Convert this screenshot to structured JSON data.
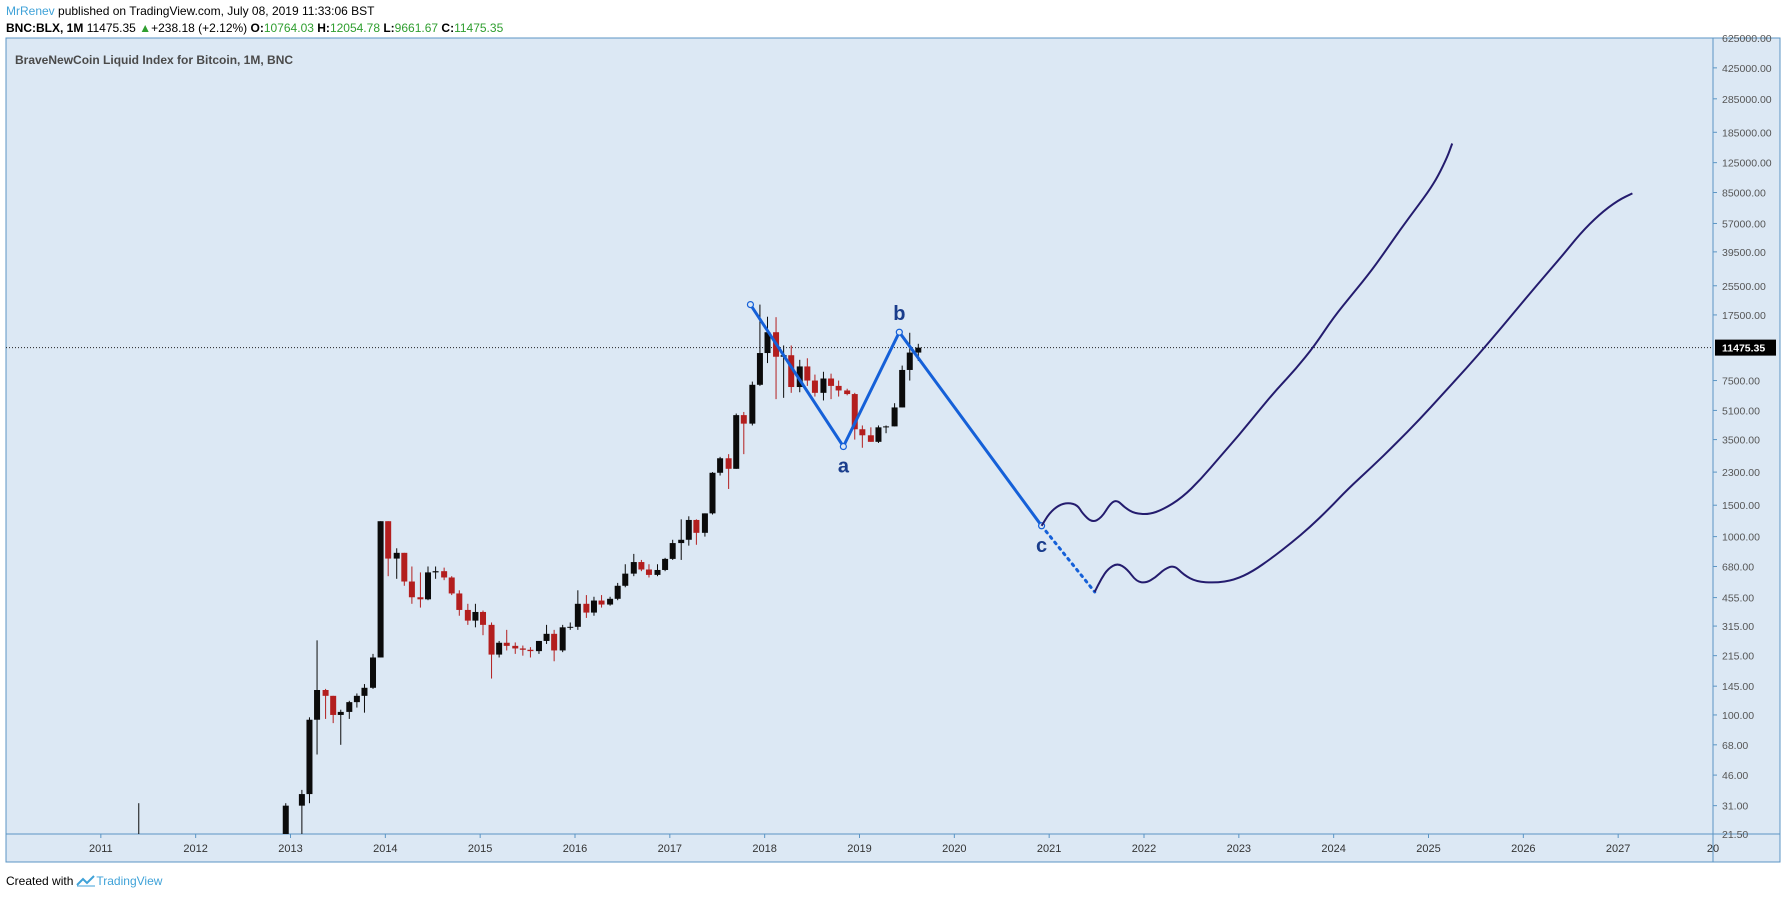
{
  "header": {
    "author": "MrRenev",
    "published_text": "published on TradingView.com, July 08, 2019 11:33:06 BST",
    "symbol": "BNC:BLX, 1M",
    "last": "11475.35",
    "up_arrow": "▲",
    "change": "+238.18 (+2.12%)",
    "o_label": "O:",
    "o_value": "10764.03",
    "h_label": "H:",
    "h_value": "12054.78",
    "l_label": "L:",
    "l_value": "9661.67",
    "c_label": "C:",
    "c_value": "11475.35"
  },
  "footer": {
    "created_with": "Created with",
    "brand": "TradingView"
  },
  "colors": {
    "background": "#dce8f4",
    "frame": "#5b95c4",
    "up_candle": "#0b0b0b",
    "down_candle": "#b31e1e",
    "pattern_line": "#1560d8",
    "projection": "#241c6e",
    "wave_label": "#1a3d8c",
    "price_label_bg": "#000000"
  },
  "chart_data": {
    "type": "candlestick",
    "title": "BraveNewCoin Liquid Index for Bitcoin, 1M, BNC",
    "y_scale": "log",
    "ylim": [
      21.5,
      625000
    ],
    "xlim": [
      2010.0,
      2028.0
    ],
    "y_ticks": [
      "625000.00",
      "425000.00",
      "285000.00",
      "185000.00",
      "125000.00",
      "85000.00",
      "57000.00",
      "39500.00",
      "25500.00",
      "17500.00",
      "11475.35",
      "7500.00",
      "5100.00",
      "3500.00",
      "2300.00",
      "1500.00",
      "1000.00",
      "680.00",
      "455.00",
      "315.00",
      "215.00",
      "145.00",
      "100.00",
      "68.00",
      "46.00",
      "31.00",
      "21.50"
    ],
    "x_ticks": [
      "2011",
      "2012",
      "2013",
      "2014",
      "2015",
      "2016",
      "2017",
      "2018",
      "2019",
      "2020",
      "2021",
      "2022",
      "2023",
      "2024",
      "2025",
      "2026",
      "2027",
      "20"
    ],
    "last_price_label": "11475.35",
    "candles_ohlc": [
      [
        2011.4,
        21,
        32,
        21,
        21
      ],
      [
        2012.95,
        21,
        32,
        21,
        31
      ],
      [
        2013.12,
        31,
        38,
        21,
        36
      ],
      [
        2013.2,
        36,
        97,
        32,
        94
      ],
      [
        2013.28,
        94,
        262,
        60,
        138
      ],
      [
        2013.37,
        138,
        140,
        95,
        128
      ],
      [
        2013.45,
        128,
        128,
        90,
        100
      ],
      [
        2013.53,
        100,
        107,
        68,
        104
      ],
      [
        2013.62,
        104,
        120,
        95,
        118
      ],
      [
        2013.7,
        118,
        132,
        110,
        128
      ],
      [
        2013.78,
        128,
        149,
        103,
        142
      ],
      [
        2013.87,
        142,
        220,
        140,
        210
      ],
      [
        2013.95,
        210,
        1220,
        210,
        1220
      ],
      [
        2014.03,
        1220,
        1220,
        600,
        753
      ],
      [
        2014.12,
        753,
        860,
        580,
        811
      ],
      [
        2014.2,
        811,
        811,
        530,
        560
      ],
      [
        2014.28,
        560,
        680,
        420,
        457
      ],
      [
        2014.37,
        457,
        630,
        400,
        445
      ],
      [
        2014.45,
        445,
        680,
        440,
        630
      ],
      [
        2014.53,
        630,
        680,
        580,
        640
      ],
      [
        2014.62,
        640,
        670,
        570,
        590
      ],
      [
        2014.7,
        590,
        600,
        470,
        480
      ],
      [
        2014.78,
        480,
        500,
        360,
        388
      ],
      [
        2014.87,
        388,
        420,
        320,
        338
      ],
      [
        2014.95,
        338,
        420,
        310,
        378
      ],
      [
        2015.03,
        378,
        385,
        280,
        320
      ],
      [
        2015.12,
        320,
        330,
        160,
        218
      ],
      [
        2015.2,
        218,
        260,
        210,
        254
      ],
      [
        2015.28,
        254,
        300,
        230,
        244
      ],
      [
        2015.37,
        244,
        255,
        220,
        236
      ],
      [
        2015.45,
        236,
        245,
        215,
        232
      ],
      [
        2015.53,
        232,
        240,
        210,
        228
      ],
      [
        2015.62,
        228,
        260,
        220,
        260
      ],
      [
        2015.7,
        260,
        320,
        250,
        285
      ],
      [
        2015.78,
        285,
        300,
        200,
        230
      ],
      [
        2015.87,
        230,
        320,
        225,
        310
      ],
      [
        2015.95,
        310,
        330,
        300,
        312
      ],
      [
        2016.03,
        312,
        500,
        300,
        420
      ],
      [
        2016.12,
        420,
        470,
        350,
        375
      ],
      [
        2016.2,
        375,
        460,
        360,
        438
      ],
      [
        2016.28,
        438,
        470,
        400,
        416
      ],
      [
        2016.37,
        416,
        460,
        410,
        448
      ],
      [
        2016.45,
        448,
        550,
        440,
        530
      ],
      [
        2016.53,
        530,
        700,
        520,
        620
      ],
      [
        2016.62,
        620,
        800,
        600,
        720
      ],
      [
        2016.7,
        720,
        740,
        640,
        654
      ],
      [
        2016.78,
        654,
        700,
        590,
        610
      ],
      [
        2016.87,
        610,
        700,
        600,
        650
      ],
      [
        2016.95,
        650,
        760,
        640,
        750
      ],
      [
        2017.03,
        750,
        960,
        740,
        920
      ],
      [
        2017.12,
        920,
        1250,
        740,
        960
      ],
      [
        2017.2,
        960,
        1300,
        890,
        1240
      ],
      [
        2017.28,
        1240,
        1250,
        900,
        1050
      ],
      [
        2017.37,
        1050,
        1350,
        1000,
        1350
      ],
      [
        2017.45,
        1350,
        2300,
        1330,
        2280
      ],
      [
        2017.53,
        2280,
        2800,
        2200,
        2750
      ],
      [
        2017.62,
        2750,
        2900,
        1850,
        2400
      ],
      [
        2017.7,
        2400,
        4900,
        2400,
        4800
      ],
      [
        2017.78,
        4800,
        5000,
        2900,
        4300
      ],
      [
        2017.87,
        4300,
        7400,
        4200,
        7100
      ],
      [
        2017.95,
        7100,
        20000,
        7000,
        10700
      ],
      [
        2018.03,
        10700,
        17100,
        9400,
        14000
      ],
      [
        2018.12,
        14000,
        17000,
        5900,
        10200
      ],
      [
        2018.2,
        10200,
        11800,
        6000,
        10400
      ],
      [
        2018.28,
        10400,
        11800,
        6400,
        6900
      ],
      [
        2018.37,
        6900,
        9800,
        6450,
        9000
      ],
      [
        2018.45,
        9000,
        10000,
        7000,
        7500
      ],
      [
        2018.53,
        7500,
        8100,
        6100,
        6400
      ],
      [
        2018.62,
        6400,
        8400,
        5800,
        7700
      ],
      [
        2018.7,
        7700,
        8200,
        5900,
        7000
      ],
      [
        2018.78,
        7000,
        7500,
        6100,
        6600
      ],
      [
        2018.87,
        6600,
        6750,
        6200,
        6300
      ],
      [
        2018.95,
        6300,
        6400,
        3500,
        4000
      ],
      [
        2019.03,
        4000,
        4200,
        3150,
        3700
      ],
      [
        2019.12,
        3700,
        4100,
        3400,
        3400
      ],
      [
        2019.2,
        3400,
        4200,
        3350,
        4100
      ],
      [
        2019.28,
        4100,
        4200,
        3800,
        4150
      ],
      [
        2019.37,
        4150,
        5600,
        4150,
        5300
      ],
      [
        2019.45,
        5300,
        9100,
        5300,
        8600
      ],
      [
        2019.53,
        8600,
        13900,
        7500,
        10764
      ],
      [
        2019.62,
        10764,
        12055,
        9662,
        11475
      ]
    ],
    "pattern_line": [
      [
        2017.85,
        20000
      ],
      [
        2018.83,
        3200
      ],
      [
        2019.42,
        14000
      ],
      [
        2020.92,
        1150
      ]
    ],
    "pattern_dotted": [
      [
        2020.92,
        1150
      ],
      [
        2021.48,
        490
      ]
    ],
    "wave_labels": [
      {
        "text": "a",
        "x": 2018.83,
        "y": 3200,
        "pos": "below"
      },
      {
        "text": "b",
        "x": 2019.42,
        "y": 14000,
        "pos": "above"
      },
      {
        "text": "c",
        "x": 2020.92,
        "y": 1150,
        "pos": "below"
      }
    ],
    "projections": [
      {
        "points": [
          [
            2020.92,
            1150
          ],
          [
            2021.0,
            1350
          ],
          [
            2021.1,
            1500
          ],
          [
            2021.2,
            1550
          ],
          [
            2021.3,
            1500
          ],
          [
            2021.35,
            1350
          ],
          [
            2021.45,
            1200
          ],
          [
            2021.55,
            1270
          ],
          [
            2021.65,
            1550
          ],
          [
            2021.72,
            1600
          ],
          [
            2021.8,
            1450
          ],
          [
            2021.9,
            1350
          ],
          [
            2022.05,
            1330
          ],
          [
            2022.2,
            1420
          ],
          [
            2022.4,
            1650
          ],
          [
            2022.6,
            2100
          ],
          [
            2022.8,
            2800
          ],
          [
            2023.0,
            3700
          ],
          [
            2023.2,
            5000
          ],
          [
            2023.4,
            6700
          ],
          [
            2023.6,
            8700
          ],
          [
            2023.8,
            11800
          ],
          [
            2024.0,
            17000
          ],
          [
            2024.2,
            23000
          ],
          [
            2024.4,
            31000
          ],
          [
            2024.6,
            44000
          ],
          [
            2024.8,
            62000
          ],
          [
            2025.0,
            86000
          ],
          [
            2025.1,
            105000
          ],
          [
            2025.2,
            135000
          ],
          [
            2025.25,
            160000
          ]
        ]
      },
      {
        "points": [
          [
            2021.48,
            490
          ],
          [
            2021.55,
            580
          ],
          [
            2021.62,
            660
          ],
          [
            2021.72,
            710
          ],
          [
            2021.82,
            660
          ],
          [
            2021.92,
            560
          ],
          [
            2022.02,
            550
          ],
          [
            2022.12,
            590
          ],
          [
            2022.22,
            660
          ],
          [
            2022.32,
            690
          ],
          [
            2022.42,
            610
          ],
          [
            2022.55,
            560
          ],
          [
            2022.75,
            550
          ],
          [
            2022.95,
            570
          ],
          [
            2023.15,
            640
          ],
          [
            2023.35,
            760
          ],
          [
            2023.55,
            920
          ],
          [
            2023.75,
            1130
          ],
          [
            2023.95,
            1430
          ],
          [
            2024.15,
            1850
          ],
          [
            2024.4,
            2450
          ],
          [
            2024.65,
            3300
          ],
          [
            2024.9,
            4500
          ],
          [
            2025.15,
            6300
          ],
          [
            2025.4,
            8800
          ],
          [
            2025.65,
            12500
          ],
          [
            2025.9,
            18000
          ],
          [
            2026.15,
            26000
          ],
          [
            2026.4,
            37000
          ],
          [
            2026.6,
            50000
          ],
          [
            2026.8,
            64000
          ],
          [
            2027.0,
            77000
          ],
          [
            2027.15,
            84000
          ]
        ]
      }
    ]
  }
}
